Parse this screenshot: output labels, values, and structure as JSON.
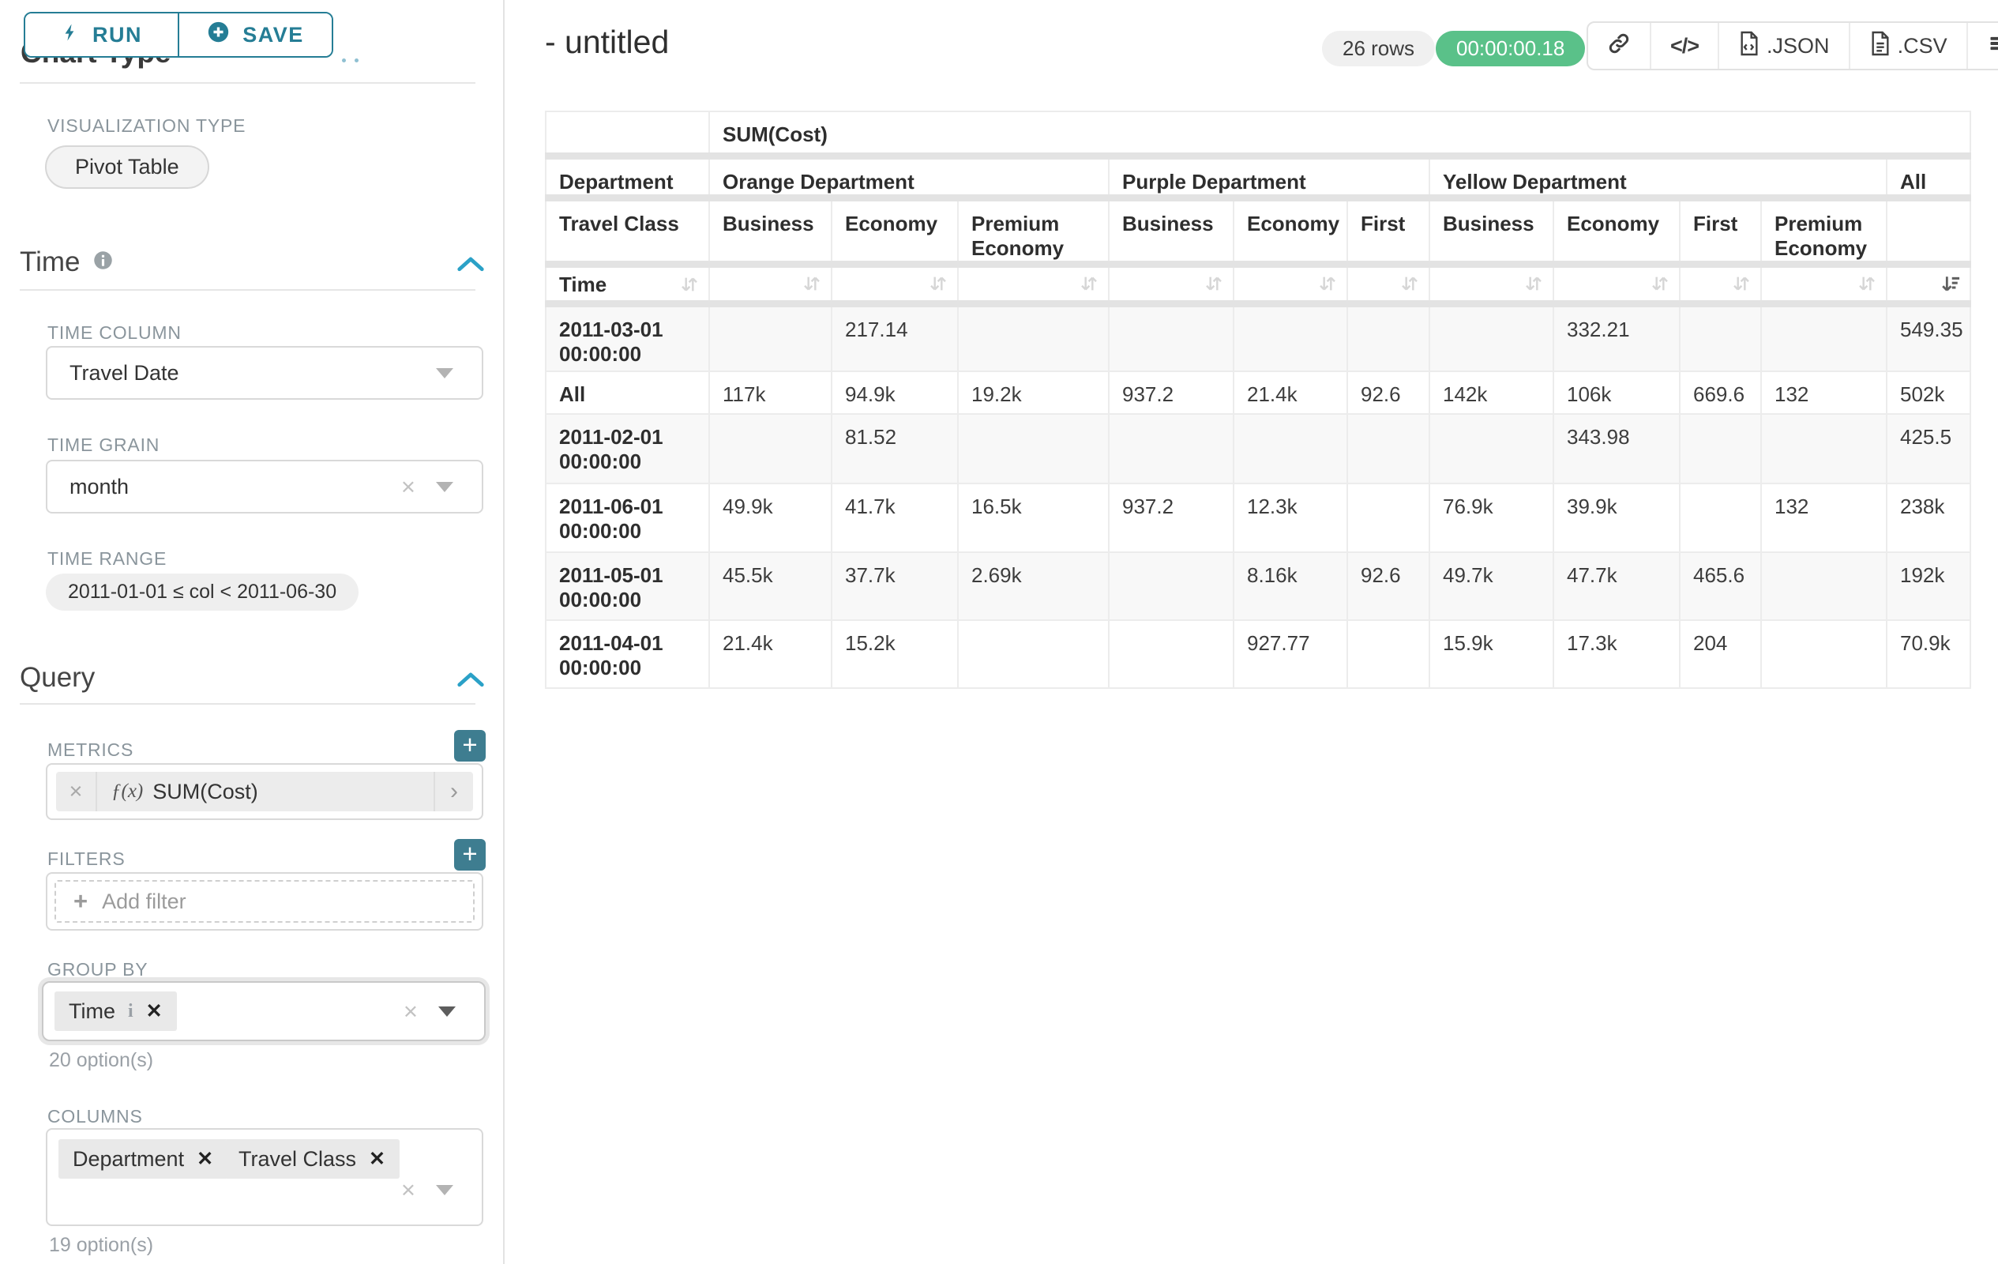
{
  "colors": {
    "primary": "#257d95",
    "plus_button": "#3e7d90",
    "success": "#5ac189",
    "chevron": "#2ba1c7"
  },
  "sidebar": {
    "run_label": "RUN",
    "save_label": "SAVE",
    "chart_type_heading": "Chart Type",
    "visualization_type_label": "VISUALIZATION TYPE",
    "visualization_type_value": "Pivot Table",
    "time_section": {
      "title": "Time",
      "time_column_label": "TIME COLUMN",
      "time_column_value": "Travel Date",
      "time_grain_label": "TIME GRAIN",
      "time_grain_value": "month",
      "time_range_label": "TIME RANGE",
      "time_range_value": "2011-01-01 ≤ col < 2011-06-30"
    },
    "query_section": {
      "title": "Query",
      "metrics_label": "METRICS",
      "metric_fx": "ƒ(x)",
      "metric_value": "SUM(Cost)",
      "filters_label": "FILTERS",
      "add_filter_label": "Add filter",
      "group_by_label": "GROUP BY",
      "group_by_tags": [
        "Time"
      ],
      "group_by_hint": "20 option(s)",
      "columns_label": "COLUMNS",
      "columns_tags": [
        "Department",
        "Travel Class"
      ],
      "columns_hint": "19 option(s)"
    }
  },
  "header": {
    "title": "- untitled",
    "row_count": "26 rows",
    "duration": "00:00:00.18",
    "json_label": ".JSON",
    "csv_label": ".CSV"
  },
  "chart_data": {
    "type": "table",
    "metric": "SUM(Cost)",
    "row_dimension": "Time",
    "col_dimensions": [
      "Department",
      "Travel Class"
    ],
    "corner": {
      "row2": "Department",
      "row3": "Travel Class",
      "row4": "Time"
    },
    "column_groups": [
      {
        "label": "Orange Department",
        "children": [
          "Business",
          "Economy",
          "Premium Economy"
        ]
      },
      {
        "label": "Purple Department",
        "children": [
          "Business",
          "Economy",
          "First"
        ]
      },
      {
        "label": "Yellow Department",
        "children": [
          "Business",
          "Economy",
          "First",
          "Premium Economy"
        ]
      },
      {
        "label": "All",
        "children": [
          ""
        ]
      }
    ],
    "rows": [
      {
        "label": "2011-03-01 00:00:00",
        "values": [
          "",
          "217.14",
          "",
          "",
          "",
          "",
          "",
          "332.21",
          "",
          "",
          "549.35"
        ]
      },
      {
        "label": "All",
        "values": [
          "117k",
          "94.9k",
          "19.2k",
          "937.2",
          "21.4k",
          "92.6",
          "142k",
          "106k",
          "669.6",
          "132",
          "502k"
        ]
      },
      {
        "label": "2011-02-01 00:00:00",
        "values": [
          "",
          "81.52",
          "",
          "",
          "",
          "",
          "",
          "343.98",
          "",
          "",
          "425.5"
        ]
      },
      {
        "label": "2011-06-01 00:00:00",
        "values": [
          "49.9k",
          "41.7k",
          "16.5k",
          "937.2",
          "12.3k",
          "",
          "76.9k",
          "39.9k",
          "",
          "132",
          "238k"
        ]
      },
      {
        "label": "2011-05-01 00:00:00",
        "values": [
          "45.5k",
          "37.7k",
          "2.69k",
          "",
          "8.16k",
          "92.6",
          "49.7k",
          "47.7k",
          "465.6",
          "",
          "192k"
        ]
      },
      {
        "label": "2011-04-01 00:00:00",
        "values": [
          "21.4k",
          "15.2k",
          "",
          "",
          "927.77",
          "",
          "15.9k",
          "17.3k",
          "204",
          "",
          "70.9k"
        ]
      }
    ]
  }
}
